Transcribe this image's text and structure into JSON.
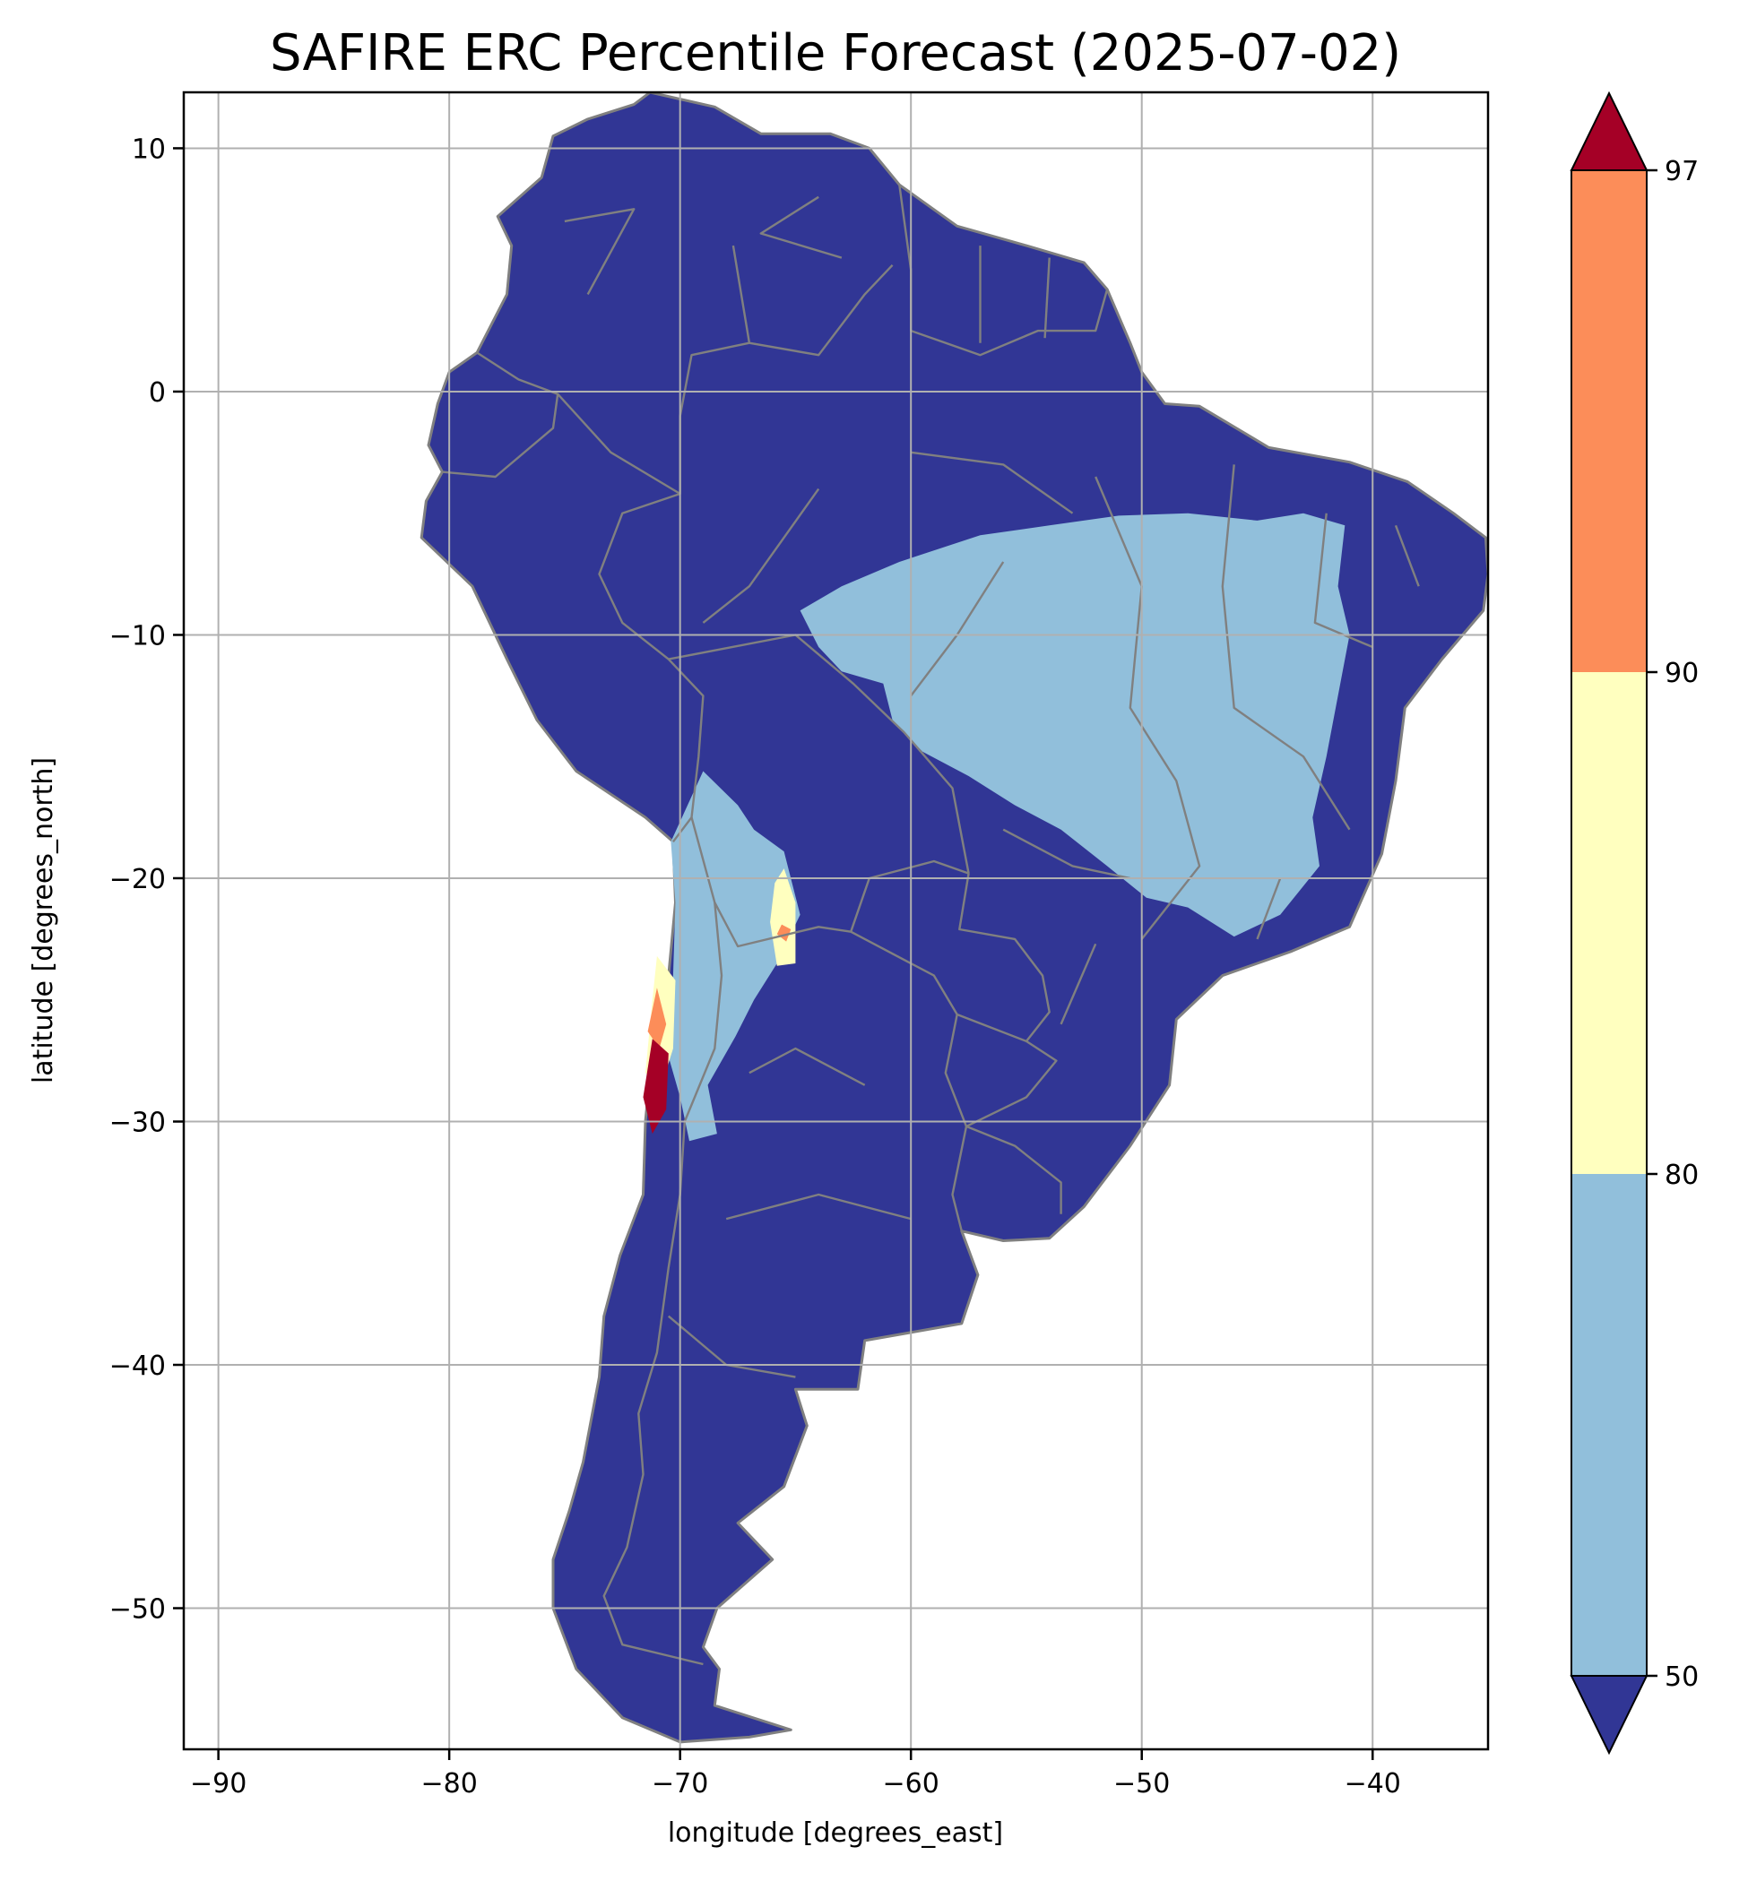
{
  "figure": {
    "title": "SAFIRE ERC Percentile Forecast (2025-07-02)",
    "xlabel": "longitude [degrees_east]",
    "ylabel": "latitude [degrees_north]"
  },
  "map": {
    "extent": {
      "lon": [
        -91.5,
        -35.0
      ],
      "lat": [
        -55.8,
        12.3
      ]
    },
    "ocean_color": "#ffffff",
    "land_base_color": "#313695",
    "border_color": "#808080",
    "grid": true,
    "grid_color": "#b0b0b0",
    "x_ticks": [
      -90,
      -80,
      -70,
      -60,
      -50,
      -40
    ],
    "y_ticks": [
      10,
      0,
      -10,
      -20,
      -30,
      -40,
      -50
    ],
    "continent_outline": [
      [
        -71.3,
        12.3
      ],
      [
        -68.5,
        11.7
      ],
      [
        -66.5,
        10.6
      ],
      [
        -63.5,
        10.6
      ],
      [
        -61.8,
        10.0
      ],
      [
        -60.5,
        8.5
      ],
      [
        -58.0,
        6.8
      ],
      [
        -55.0,
        6.0
      ],
      [
        -52.5,
        5.3
      ],
      [
        -51.5,
        4.2
      ],
      [
        -50.5,
        2.0
      ],
      [
        -50.0,
        0.8
      ],
      [
        -49.0,
        -0.5
      ],
      [
        -47.5,
        -0.6
      ],
      [
        -44.5,
        -2.3
      ],
      [
        -41.0,
        -2.9
      ],
      [
        -38.5,
        -3.7
      ],
      [
        -36.5,
        -5.0
      ],
      [
        -35.1,
        -6.0
      ],
      [
        -35.0,
        -7.5
      ],
      [
        -35.2,
        -9.0
      ],
      [
        -37.0,
        -11.0
      ],
      [
        -38.6,
        -13.0
      ],
      [
        -39.0,
        -16.0
      ],
      [
        -39.6,
        -19.0
      ],
      [
        -41.0,
        -22.0
      ],
      [
        -43.5,
        -23.0
      ],
      [
        -46.5,
        -24.0
      ],
      [
        -48.5,
        -25.8
      ],
      [
        -48.8,
        -28.5
      ],
      [
        -50.5,
        -31.0
      ],
      [
        -52.5,
        -33.5
      ],
      [
        -54.0,
        -34.8
      ],
      [
        -56.0,
        -34.9
      ],
      [
        -57.8,
        -34.5
      ],
      [
        -57.1,
        -36.3
      ],
      [
        -57.8,
        -38.3
      ],
      [
        -62.0,
        -39.0
      ],
      [
        -62.3,
        -41.0
      ],
      [
        -65.0,
        -41.0
      ],
      [
        -64.5,
        -42.5
      ],
      [
        -65.5,
        -45.0
      ],
      [
        -67.5,
        -46.5
      ],
      [
        -66.0,
        -48.0
      ],
      [
        -68.4,
        -50.0
      ],
      [
        -69.0,
        -51.6
      ],
      [
        -68.3,
        -52.5
      ],
      [
        -68.5,
        -54.0
      ],
      [
        -65.2,
        -55.0
      ],
      [
        -67.0,
        -55.3
      ],
      [
        -70.0,
        -55.5
      ],
      [
        -72.5,
        -54.5
      ],
      [
        -74.5,
        -52.5
      ],
      [
        -75.5,
        -50.0
      ],
      [
        -75.5,
        -48.0
      ],
      [
        -74.8,
        -46.0
      ],
      [
        -74.2,
        -44.0
      ],
      [
        -73.8,
        -42.0
      ],
      [
        -73.5,
        -40.5
      ],
      [
        -73.3,
        -38.0
      ],
      [
        -72.6,
        -35.5
      ],
      [
        -71.6,
        -33.0
      ],
      [
        -71.5,
        -30.0
      ],
      [
        -71.2,
        -27.0
      ],
      [
        -70.5,
        -24.0
      ],
      [
        -70.2,
        -21.0
      ],
      [
        -70.3,
        -18.5
      ],
      [
        -71.5,
        -17.5
      ],
      [
        -74.5,
        -15.6
      ],
      [
        -76.2,
        -13.5
      ],
      [
        -77.5,
        -11.0
      ],
      [
        -79.0,
        -8.0
      ],
      [
        -81.2,
        -6.0
      ],
      [
        -81.0,
        -4.5
      ],
      [
        -80.3,
        -3.3
      ],
      [
        -80.9,
        -2.2
      ],
      [
        -80.5,
        -0.5
      ],
      [
        -80.0,
        0.8
      ],
      [
        -78.8,
        1.6
      ],
      [
        -77.5,
        4.0
      ],
      [
        -77.3,
        6.0
      ],
      [
        -77.9,
        7.2
      ],
      [
        -76.0,
        8.8
      ],
      [
        -75.5,
        10.5
      ],
      [
        -74.0,
        11.2
      ],
      [
        -72.0,
        11.8
      ],
      [
        -71.3,
        12.3
      ]
    ],
    "borders": [
      [
        [
          -67.7,
          6.0
        ],
        [
          -67.0,
          2.0
        ],
        [
          -64.0,
          1.5
        ],
        [
          -62.0,
          4.0
        ],
        [
          -60.8,
          5.2
        ]
      ],
      [
        [
          -60.5,
          8.5
        ],
        [
          -60.0,
          5.0
        ],
        [
          -60.0,
          2.5
        ],
        [
          -57.0,
          1.5
        ],
        [
          -54.5,
          2.5
        ],
        [
          -52.0,
          2.5
        ],
        [
          -51.5,
          4.2
        ]
      ],
      [
        [
          -57.0,
          6.0
        ],
        [
          -57.0,
          2.0
        ]
      ],
      [
        [
          -54.0,
          5.5
        ],
        [
          -54.2,
          2.2
        ]
      ],
      [
        [
          -78.8,
          1.6
        ],
        [
          -77.0,
          0.5
        ],
        [
          -75.3,
          -0.1
        ],
        [
          -75.5,
          -1.5
        ],
        [
          -78.0,
          -3.5
        ],
        [
          -80.3,
          -3.3
        ]
      ],
      [
        [
          -75.3,
          -0.1
        ],
        [
          -73.0,
          -2.5
        ],
        [
          -70.0,
          -4.2
        ],
        [
          -70.0,
          -1.0
        ],
        [
          -69.5,
          1.5
        ],
        [
          -67.0,
          2.0
        ]
      ],
      [
        [
          -70.0,
          -4.2
        ],
        [
          -72.5,
          -5.0
        ],
        [
          -73.5,
          -7.5
        ],
        [
          -72.5,
          -9.5
        ],
        [
          -70.5,
          -11.0
        ],
        [
          -69.0,
          -12.5
        ],
        [
          -69.2,
          -15.0
        ],
        [
          -69.5,
          -17.5
        ],
        [
          -70.3,
          -18.5
        ]
      ],
      [
        [
          -70.5,
          -11.0
        ],
        [
          -65.0,
          -10.0
        ],
        [
          -62.5,
          -12.0
        ],
        [
          -60.3,
          -14.0
        ],
        [
          -58.2,
          -16.3
        ],
        [
          -57.5,
          -19.8
        ]
      ],
      [
        [
          -69.5,
          -17.5
        ],
        [
          -68.5,
          -21.0
        ],
        [
          -67.5,
          -22.8
        ],
        [
          -64.0,
          -22.0
        ],
        [
          -62.6,
          -22.2
        ],
        [
          -61.8,
          -20.0
        ],
        [
          -59.0,
          -19.3
        ],
        [
          -57.5,
          -19.8
        ]
      ],
      [
        [
          -62.6,
          -22.2
        ],
        [
          -59.0,
          -24.0
        ],
        [
          -58.0,
          -25.6
        ],
        [
          -55.0,
          -26.7
        ],
        [
          -54.0,
          -25.5
        ],
        [
          -54.3,
          -24.0
        ],
        [
          -55.5,
          -22.5
        ],
        [
          -57.9,
          -22.1
        ],
        [
          -57.5,
          -19.8
        ]
      ],
      [
        [
          -68.5,
          -21.0
        ],
        [
          -68.2,
          -24.0
        ],
        [
          -68.5,
          -27.0
        ],
        [
          -69.8,
          -30.0
        ],
        [
          -70.0,
          -33.0
        ],
        [
          -70.5,
          -36.0
        ],
        [
          -71.0,
          -39.5
        ],
        [
          -71.8,
          -42.0
        ],
        [
          -71.6,
          -44.5
        ],
        [
          -72.3,
          -47.5
        ],
        [
          -73.3,
          -49.5
        ],
        [
          -72.5,
          -51.5
        ],
        [
          -69.0,
          -52.3
        ]
      ],
      [
        [
          -58.0,
          -25.6
        ],
        [
          -58.5,
          -28.0
        ],
        [
          -57.6,
          -30.2
        ],
        [
          -58.2,
          -33.0
        ],
        [
          -57.8,
          -34.5
        ]
      ],
      [
        [
          -55.0,
          -26.7
        ],
        [
          -53.7,
          -27.5
        ],
        [
          -55.0,
          -29.0
        ],
        [
          -57.6,
          -30.2
        ]
      ],
      [
        [
          -57.6,
          -30.2
        ],
        [
          -55.5,
          -31.0
        ],
        [
          -53.5,
          -32.5
        ],
        [
          -53.5,
          -33.8
        ]
      ],
      [
        [
          -65.0,
          -40.5
        ],
        [
          -68.0,
          -40.0
        ],
        [
          -70.5,
          -38.0
        ]
      ],
      [
        [
          -60.0,
          -34.0
        ],
        [
          -64.0,
          -33.0
        ],
        [
          -68.0,
          -34.0
        ]
      ],
      [
        [
          -62.0,
          -28.5
        ],
        [
          -65.0,
          -27.0
        ],
        [
          -67.0,
          -28.0
        ]
      ],
      [
        [
          -52.0,
          -3.5
        ],
        [
          -50.0,
          -8.0
        ],
        [
          -50.5,
          -13.0
        ],
        [
          -48.5,
          -16.0
        ],
        [
          -47.5,
          -19.5
        ],
        [
          -50.0,
          -22.5
        ]
      ],
      [
        [
          -56.0,
          -7.0
        ],
        [
          -58.0,
          -10.0
        ],
        [
          -60.0,
          -12.5
        ]
      ],
      [
        [
          -46.0,
          -3.0
        ],
        [
          -46.5,
          -8.0
        ],
        [
          -46.0,
          -13.0
        ],
        [
          -43.0,
          -15.0
        ],
        [
          -41.0,
          -18.0
        ]
      ],
      [
        [
          -60.0,
          -2.5
        ],
        [
          -56.0,
          -3.0
        ],
        [
          -53.0,
          -5.0
        ]
      ],
      [
        [
          -64.0,
          -4.0
        ],
        [
          -67.0,
          -8.0
        ],
        [
          -69.0,
          -9.5
        ]
      ],
      [
        [
          -56.0,
          -18.0
        ],
        [
          -53.0,
          -19.5
        ],
        [
          -50.5,
          -20.0
        ]
      ],
      [
        [
          -42.0,
          -5.0
        ],
        [
          -42.5,
          -9.5
        ],
        [
          -40.0,
          -10.5
        ]
      ],
      [
        [
          -39.0,
          -5.5
        ],
        [
          -38.0,
          -8.0
        ]
      ],
      [
        [
          -44.0,
          -20.0
        ],
        [
          -45.0,
          -22.5
        ]
      ],
      [
        [
          -52.0,
          -22.7
        ],
        [
          -53.5,
          -26.0
        ]
      ],
      [
        [
          -74.0,
          4.0
        ],
        [
          -72.0,
          7.5
        ],
        [
          -75.0,
          7.0
        ]
      ],
      [
        [
          -64.0,
          8.0
        ],
        [
          -66.5,
          6.5
        ],
        [
          -63.0,
          5.5
        ]
      ]
    ],
    "regions": [
      {
        "category": "50-80",
        "color": "#91bfdb",
        "polygon": [
          [
            -57.0,
            -5.9
          ],
          [
            -54.0,
            -5.5
          ],
          [
            -51.0,
            -5.1
          ],
          [
            -48.0,
            -5.0
          ],
          [
            -45.0,
            -5.3
          ],
          [
            -43.0,
            -5.0
          ],
          [
            -41.2,
            -5.5
          ],
          [
            -41.5,
            -8.0
          ],
          [
            -41.0,
            -10.0
          ],
          [
            -41.5,
            -12.5
          ],
          [
            -42.0,
            -15.0
          ],
          [
            -42.6,
            -17.5
          ],
          [
            -42.3,
            -19.5
          ],
          [
            -44.0,
            -21.5
          ],
          [
            -46.0,
            -22.4
          ],
          [
            -48.0,
            -21.2
          ],
          [
            -49.8,
            -20.8
          ],
          [
            -51.5,
            -19.5
          ],
          [
            -53.5,
            -18.0
          ],
          [
            -55.5,
            -17.0
          ],
          [
            -57.5,
            -15.8
          ],
          [
            -59.5,
            -14.8
          ],
          [
            -60.8,
            -13.5
          ],
          [
            -61.2,
            -12.0
          ],
          [
            -63.0,
            -11.5
          ],
          [
            -64.0,
            -10.5
          ],
          [
            -64.8,
            -9.0
          ],
          [
            -63.0,
            -8.0
          ],
          [
            -60.5,
            -7.0
          ]
        ]
      },
      {
        "category": "50-80",
        "color": "#91bfdb",
        "polygon": [
          [
            -70.4,
            -18.5
          ],
          [
            -69.0,
            -15.6
          ],
          [
            -67.5,
            -17.0
          ],
          [
            -66.8,
            -18.0
          ],
          [
            -65.5,
            -18.9
          ],
          [
            -64.8,
            -21.5
          ],
          [
            -65.8,
            -23.5
          ],
          [
            -66.8,
            -25.0
          ],
          [
            -67.6,
            -26.5
          ],
          [
            -68.8,
            -28.5
          ],
          [
            -68.4,
            -30.5
          ],
          [
            -69.6,
            -30.8
          ],
          [
            -70.0,
            -29.0
          ],
          [
            -70.6,
            -27.0
          ],
          [
            -70.3,
            -24.0
          ],
          [
            -70.2,
            -21.0
          ]
        ]
      },
      {
        "category": "80-90",
        "color": "#ffffbf",
        "polygon": [
          [
            -65.5,
            -19.6
          ],
          [
            -65.0,
            -21.0
          ],
          [
            -65.0,
            -23.5
          ],
          [
            -65.8,
            -23.6
          ],
          [
            -66.1,
            -21.8
          ],
          [
            -65.9,
            -20.2
          ]
        ]
      },
      {
        "category": "80-90",
        "color": "#ffffbf",
        "polygon": [
          [
            -71.0,
            -23.2
          ],
          [
            -70.2,
            -24.2
          ],
          [
            -70.3,
            -27.0
          ],
          [
            -70.8,
            -28.5
          ],
          [
            -71.5,
            -28.0
          ],
          [
            -71.2,
            -25.0
          ]
        ]
      },
      {
        "category": "90-97",
        "color": "#fc8d59",
        "polygon": [
          [
            -71.0,
            -24.5
          ],
          [
            -70.6,
            -26.0
          ],
          [
            -70.9,
            -27.0
          ],
          [
            -71.4,
            -26.3
          ]
        ]
      },
      {
        "category": "90-97",
        "color": "#fc8d59",
        "polygon": [
          [
            -65.6,
            -21.9
          ],
          [
            -65.2,
            -22.1
          ],
          [
            -65.4,
            -22.6
          ],
          [
            -65.8,
            -22.3
          ]
        ]
      },
      {
        "category": ">97",
        "color": "#a50026",
        "polygon": [
          [
            -71.2,
            -26.6
          ],
          [
            -70.5,
            -27.2
          ],
          [
            -70.6,
            -29.5
          ],
          [
            -71.2,
            -30.5
          ],
          [
            -71.6,
            -29.0
          ]
        ]
      }
    ]
  },
  "colorbar": {
    "ticks": [
      "50",
      "80",
      "90",
      "97"
    ],
    "bins": [
      {
        "from": "50",
        "to": "80",
        "color": "#91bfdb"
      },
      {
        "from": "80",
        "to": "90",
        "color": "#ffffbf"
      },
      {
        "from": "90",
        "to": "97",
        "color": "#fc8d59"
      }
    ],
    "under_color": "#313695",
    "over_color": "#a50026"
  }
}
